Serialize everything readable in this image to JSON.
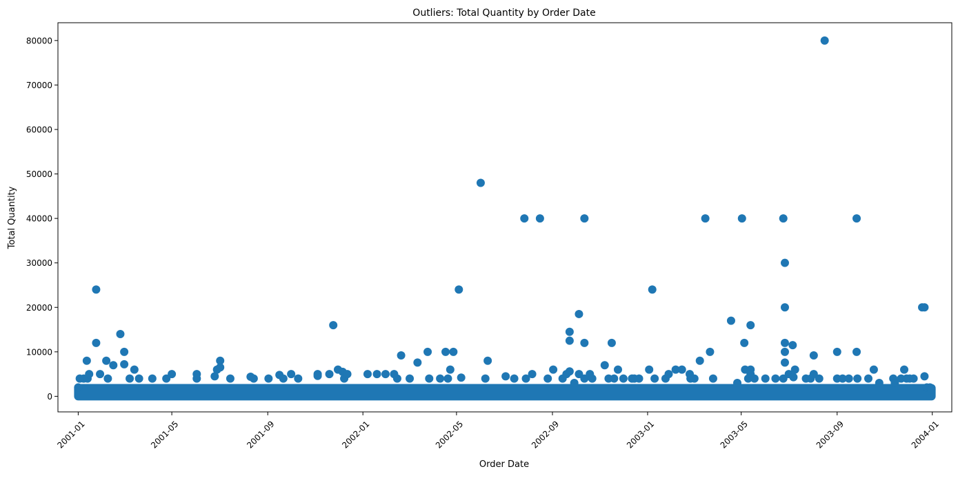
{
  "chart_data": {
    "type": "scatter",
    "title": "Outliers: Total Quantity by Order Date",
    "xlabel": "Order Date",
    "ylabel": "Total Quantity",
    "x_ticks": [
      "2001-01",
      "2001-05",
      "2001-09",
      "2002-01",
      "2002-05",
      "2002-09",
      "2003-01",
      "2003-05",
      "2003-09",
      "2004-01"
    ],
    "y_ticks": [
      0,
      10000,
      20000,
      30000,
      40000,
      50000,
      60000,
      70000,
      80000
    ],
    "xlim": [
      "2000-12-06",
      "2004-01-26"
    ],
    "ylim": [
      -3500,
      84000
    ],
    "grid": false,
    "marker_color": "#1f77b4",
    "baseline_band": {
      "from": "2001-01-01",
      "to": "2003-12-31",
      "ymin": 0,
      "ymax": 2000
    },
    "points": [
      [
        "2001-01-01",
        2000
      ],
      [
        "2001-01-03",
        4000
      ],
      [
        "2001-01-08",
        4000
      ],
      [
        "2001-01-12",
        8000
      ],
      [
        "2001-01-13",
        4000
      ],
      [
        "2001-01-15",
        5000
      ],
      [
        "2001-01-24",
        24000
      ],
      [
        "2001-01-24",
        12000
      ],
      [
        "2001-01-29",
        5000
      ],
      [
        "2001-02-06",
        8000
      ],
      [
        "2001-02-08",
        4000
      ],
      [
        "2001-02-15",
        7000
      ],
      [
        "2001-02-24",
        14000
      ],
      [
        "2001-03-01",
        10000
      ],
      [
        "2001-03-01",
        7200
      ],
      [
        "2001-03-08",
        4000
      ],
      [
        "2001-03-14",
        6000
      ],
      [
        "2001-03-20",
        4000
      ],
      [
        "2001-04-06",
        4000
      ],
      [
        "2001-04-24",
        4000
      ],
      [
        "2001-05-01",
        5000
      ],
      [
        "2001-06-02",
        5000
      ],
      [
        "2001-06-02",
        4000
      ],
      [
        "2001-06-25",
        4500
      ],
      [
        "2001-06-28",
        6000
      ],
      [
        "2001-07-02",
        8000
      ],
      [
        "2001-07-02",
        6500
      ],
      [
        "2001-07-15",
        4000
      ],
      [
        "2001-08-10",
        4400
      ],
      [
        "2001-08-14",
        4000
      ],
      [
        "2001-09-02",
        4000
      ],
      [
        "2001-09-16",
        4800
      ],
      [
        "2001-09-21",
        4000
      ],
      [
        "2001-10-01",
        5000
      ],
      [
        "2001-10-10",
        4000
      ],
      [
        "2001-11-04",
        5000
      ],
      [
        "2001-11-04",
        4600
      ],
      [
        "2001-11-19",
        5000
      ],
      [
        "2001-11-24",
        16000
      ],
      [
        "2001-11-30",
        6000
      ],
      [
        "2001-12-06",
        5500
      ],
      [
        "2001-12-08",
        4000
      ],
      [
        "2001-12-12",
        5000
      ],
      [
        "2002-01-07",
        5000
      ],
      [
        "2002-01-19",
        5000
      ],
      [
        "2002-01-30",
        5000
      ],
      [
        "2002-02-10",
        5000
      ],
      [
        "2002-02-14",
        4000
      ],
      [
        "2002-02-19",
        9200
      ],
      [
        "2002-03-02",
        4000
      ],
      [
        "2002-03-12",
        7600
      ],
      [
        "2002-03-25",
        10000
      ],
      [
        "2002-03-27",
        4000
      ],
      [
        "2002-04-10",
        4000
      ],
      [
        "2002-04-17",
        10000
      ],
      [
        "2002-04-20",
        4000
      ],
      [
        "2002-04-23",
        6000
      ],
      [
        "2002-04-27",
        10000
      ],
      [
        "2002-05-04",
        24000
      ],
      [
        "2002-05-07",
        4200
      ],
      [
        "2002-06-01",
        48000
      ],
      [
        "2002-06-07",
        4000
      ],
      [
        "2002-06-10",
        8000
      ],
      [
        "2002-07-03",
        4500
      ],
      [
        "2002-07-14",
        4000
      ],
      [
        "2002-07-27",
        40000
      ],
      [
        "2002-07-29",
        4000
      ],
      [
        "2002-08-06",
        5000
      ],
      [
        "2002-08-16",
        40000
      ],
      [
        "2002-08-26",
        4000
      ],
      [
        "2002-09-02",
        6000
      ],
      [
        "2002-09-14",
        4000
      ],
      [
        "2002-09-19",
        5000
      ],
      [
        "2002-09-23",
        14500
      ],
      [
        "2002-09-23",
        12500
      ],
      [
        "2002-09-23",
        5600
      ],
      [
        "2002-09-29",
        3000
      ],
      [
        "2002-10-05",
        18500
      ],
      [
        "2002-10-05",
        5000
      ],
      [
        "2002-10-12",
        40000
      ],
      [
        "2002-10-12",
        12000
      ],
      [
        "2002-10-12",
        4000
      ],
      [
        "2002-10-19",
        5000
      ],
      [
        "2002-10-22",
        4000
      ],
      [
        "2002-11-07",
        7000
      ],
      [
        "2002-11-12",
        4000
      ],
      [
        "2002-11-16",
        12000
      ],
      [
        "2002-11-19",
        4000
      ],
      [
        "2002-11-24",
        6000
      ],
      [
        "2002-12-01",
        4000
      ],
      [
        "2002-12-12",
        4000
      ],
      [
        "2002-12-15",
        4000
      ],
      [
        "2002-12-21",
        4000
      ],
      [
        "2003-01-03",
        6000
      ],
      [
        "2003-01-07",
        24000
      ],
      [
        "2003-01-10",
        4000
      ],
      [
        "2003-01-24",
        4000
      ],
      [
        "2003-01-28",
        5000
      ],
      [
        "2003-02-06",
        6000
      ],
      [
        "2003-02-14",
        6000
      ],
      [
        "2003-02-24",
        5000
      ],
      [
        "2003-02-25",
        4000
      ],
      [
        "2003-03-02",
        4000
      ],
      [
        "2003-03-09",
        8000
      ],
      [
        "2003-03-16",
        40000
      ],
      [
        "2003-03-22",
        10000
      ],
      [
        "2003-03-26",
        4000
      ],
      [
        "2003-04-18",
        17000
      ],
      [
        "2003-04-26",
        3000
      ],
      [
        "2003-05-02",
        40000
      ],
      [
        "2003-05-05",
        12000
      ],
      [
        "2003-05-06",
        6000
      ],
      [
        "2003-05-10",
        4000
      ],
      [
        "2003-05-13",
        16000
      ],
      [
        "2003-05-13",
        6000
      ],
      [
        "2003-05-13",
        5000
      ],
      [
        "2003-05-18",
        4000
      ],
      [
        "2003-06-01",
        4000
      ],
      [
        "2003-06-14",
        4000
      ],
      [
        "2003-06-24",
        40000
      ],
      [
        "2003-06-24",
        4000
      ],
      [
        "2003-06-26",
        30000
      ],
      [
        "2003-06-26",
        20000
      ],
      [
        "2003-06-26",
        12000
      ],
      [
        "2003-06-26",
        10000
      ],
      [
        "2003-06-26",
        7600
      ],
      [
        "2003-07-01",
        5000
      ],
      [
        "2003-07-06",
        11500
      ],
      [
        "2003-07-07",
        4300
      ],
      [
        "2003-07-09",
        6000
      ],
      [
        "2003-07-23",
        4000
      ],
      [
        "2003-07-29",
        4000
      ],
      [
        "2003-08-02",
        9200
      ],
      [
        "2003-08-02",
        5000
      ],
      [
        "2003-08-09",
        4000
      ],
      [
        "2003-08-16",
        80000
      ],
      [
        "2003-09-01",
        10000
      ],
      [
        "2003-09-01",
        4000
      ],
      [
        "2003-09-08",
        4000
      ],
      [
        "2003-09-16",
        4000
      ],
      [
        "2003-09-26",
        40000
      ],
      [
        "2003-09-26",
        10000
      ],
      [
        "2003-09-27",
        4000
      ],
      [
        "2003-10-11",
        4000
      ],
      [
        "2003-10-18",
        6000
      ],
      [
        "2003-10-25",
        3000
      ],
      [
        "2003-11-12",
        4000
      ],
      [
        "2003-11-14",
        3000
      ],
      [
        "2003-11-22",
        4000
      ],
      [
        "2003-11-26",
        6000
      ],
      [
        "2003-11-29",
        4000
      ],
      [
        "2003-12-03",
        4000
      ],
      [
        "2003-12-08",
        4000
      ],
      [
        "2003-12-19",
        20000
      ],
      [
        "2003-12-22",
        20000
      ],
      [
        "2003-12-22",
        4500
      ],
      [
        "2003-12-25",
        2000
      ],
      [
        "2003-12-29",
        2000
      ],
      [
        "2003-12-31",
        1500
      ]
    ]
  }
}
